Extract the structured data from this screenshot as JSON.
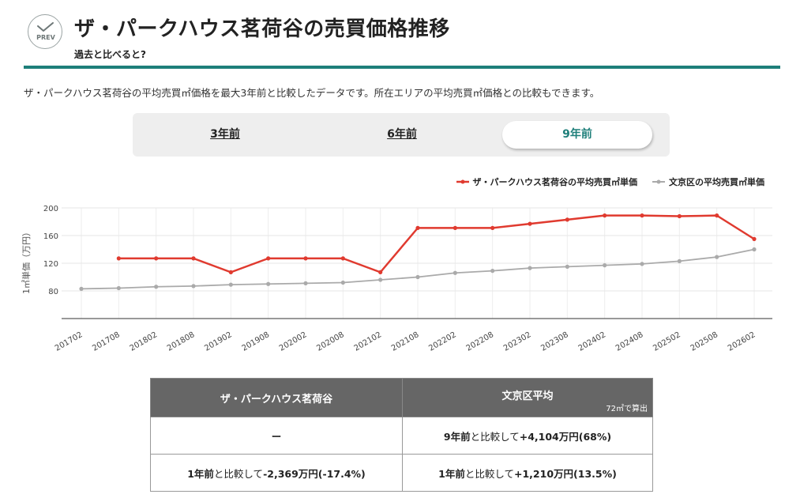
{
  "header": {
    "prev_icon_text": "PREV",
    "title": "ザ・パークハウス茗荷谷の売買価格推移",
    "subtitle": "過去と比べると?"
  },
  "description": "ザ・パークハウス茗荷谷の平均売買㎡価格を最大3年前と比較したデータです。所在エリアの平均売買㎡価格との比較もできます。",
  "tabs": [
    {
      "label": "3年前",
      "active": false
    },
    {
      "label": "6年前",
      "active": false
    },
    {
      "label": "9年前",
      "active": true
    }
  ],
  "colors": {
    "accent": "#1e7f7a",
    "series_property": "#e03a2f",
    "series_area": "#aaaaaa"
  },
  "chart_data": {
    "type": "line",
    "ylabel": "1㎡単価（万円）",
    "ylim": [
      40,
      200
    ],
    "yticks": [
      80,
      120,
      160,
      200
    ],
    "grid": true,
    "legend_position": "top-right",
    "x": [
      "201702",
      "201708",
      "201802",
      "201808",
      "201902",
      "201908",
      "202002",
      "202008",
      "202102",
      "202108",
      "202202",
      "202208",
      "202302",
      "202308",
      "202402",
      "202408",
      "202502",
      "202508",
      "202602"
    ],
    "series": [
      {
        "name": "ザ・パークハウス茗荷谷の平均売買㎡単価",
        "color": "#e03a2f",
        "values": [
          null,
          127,
          127,
          127,
          107,
          127,
          127,
          127,
          107,
          171,
          171,
          171,
          177,
          183,
          189,
          189,
          188,
          189,
          155
        ]
      },
      {
        "name": "文京区の平均売買㎡単価",
        "color": "#aaaaaa",
        "values": [
          83,
          84,
          86,
          87,
          89,
          90,
          91,
          92,
          96,
          100,
          106,
          109,
          113,
          115,
          117,
          119,
          123,
          129,
          140
        ]
      }
    ]
  },
  "table": {
    "headers": [
      "ザ・パークハウス茗荷谷",
      "文京区平均"
    ],
    "header_note": "72㎡で算出",
    "rows": [
      {
        "left": "ー",
        "right_prefix": "9年前",
        "right_mid": "と比較して",
        "right_value": "+4,104万円(68%)"
      },
      {
        "left_prefix": "1年前",
        "left_mid": "と比較して",
        "left_value": "-2,369万円(-17.4%)",
        "right_prefix": "1年前",
        "right_mid": "と比較して",
        "right_value": "+1,210万円(13.5%)"
      }
    ]
  }
}
